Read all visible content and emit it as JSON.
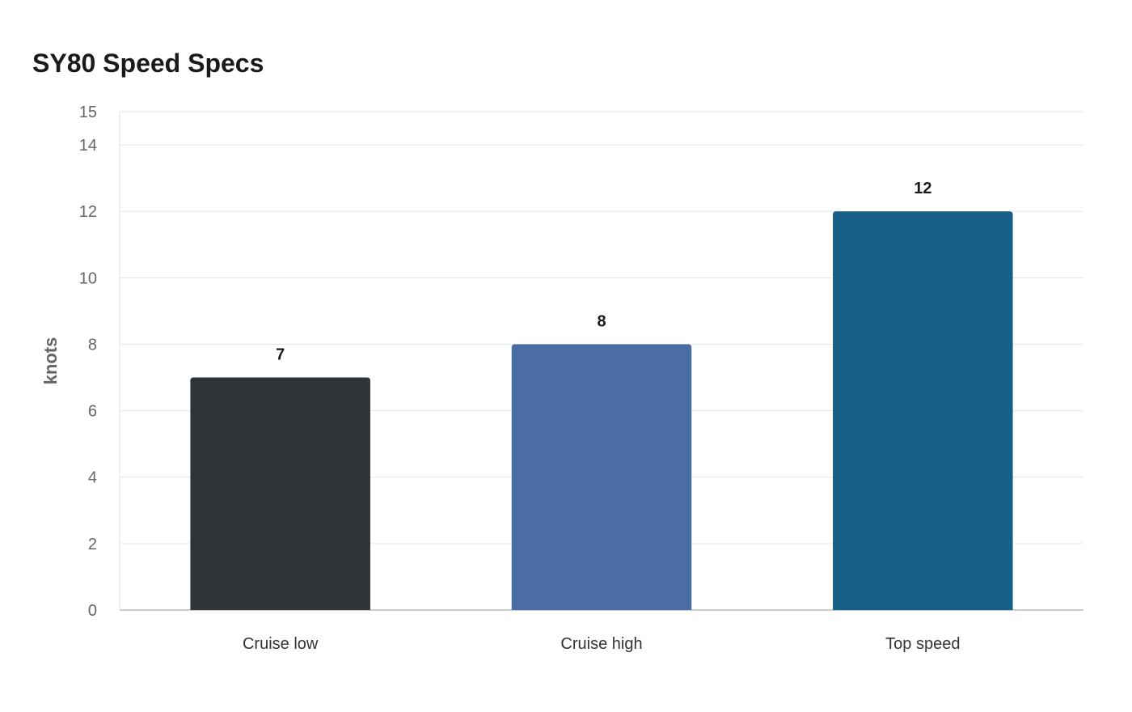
{
  "chart_data": {
    "type": "bar",
    "title": "SY80 Speed Specs",
    "ylabel": "knots",
    "xlabel": "",
    "categories": [
      "Cruise low",
      "Cruise high",
      "Top speed"
    ],
    "values": [
      7,
      8,
      12
    ],
    "data_labels": [
      "7",
      "8",
      "12"
    ],
    "colors": [
      "#2e3436",
      "#4a6ea3",
      "#166088"
    ],
    "ylim": [
      0,
      15
    ],
    "yticks": [
      0,
      2,
      4,
      6,
      8,
      10,
      12,
      14,
      15
    ],
    "ytick_labels": [
      "0",
      "2",
      "4",
      "6",
      "8",
      "10",
      "12",
      "14",
      "15"
    ],
    "grid": true,
    "legend": "none"
  }
}
